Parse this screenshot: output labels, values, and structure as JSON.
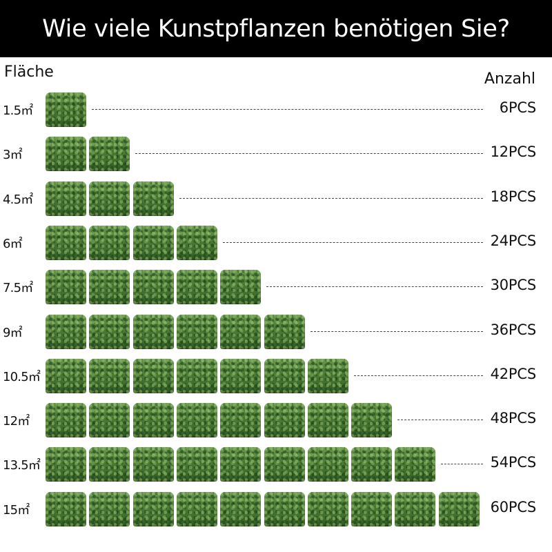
{
  "header": {
    "title": "Wie viele Kunstpflanzen benötigen Sie?"
  },
  "columns": {
    "area": "Fläche",
    "count": "Anzahl"
  },
  "rows": [
    {
      "area": "1.5㎡",
      "count": "6PCS",
      "tiles": 1
    },
    {
      "area": "3㎡",
      "count": "12PCS",
      "tiles": 2
    },
    {
      "area": "4.5㎡",
      "count": "18PCS",
      "tiles": 3
    },
    {
      "area": "6㎡",
      "count": "24PCS",
      "tiles": 4
    },
    {
      "area": "7.5㎡",
      "count": "30PCS",
      "tiles": 5
    },
    {
      "area": "9㎡",
      "count": "36PCS",
      "tiles": 6
    },
    {
      "area": "10.5㎡",
      "count": "42PCS",
      "tiles": 7
    },
    {
      "area": "12㎡",
      "count": "48PCS",
      "tiles": 8
    },
    {
      "area": "13.5㎡",
      "count": "54PCS",
      "tiles": 9
    },
    {
      "area": "15㎡",
      "count": "60PCS",
      "tiles": 10
    }
  ],
  "colors": {
    "header_bg": "#000000",
    "tile_green": "#4f7f37"
  }
}
